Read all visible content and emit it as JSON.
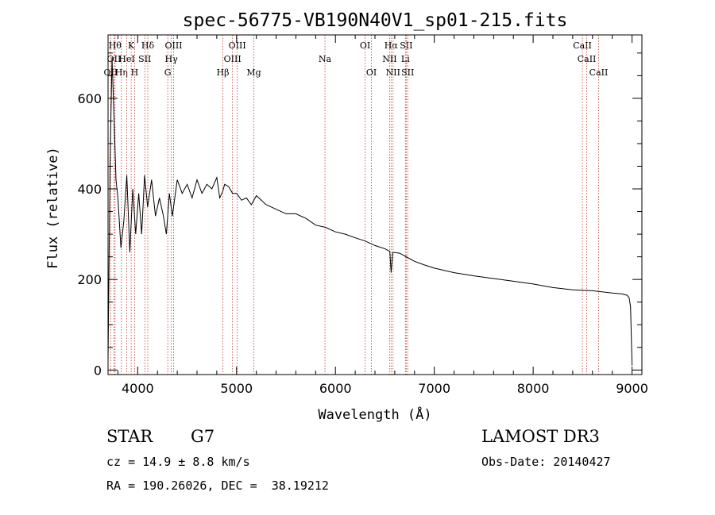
{
  "chart_data": {
    "type": "line",
    "title": "spec-56775-VB190N40V1_sp01-215.fits",
    "xlabel": "Wavelength (Å)",
    "ylabel": "Flux (relative)",
    "xlim": [
      3700,
      9100
    ],
    "ylim": [
      -10,
      740
    ],
    "xticks": [
      4000,
      5000,
      6000,
      7000,
      8000,
      9000
    ],
    "yticks": [
      0,
      200,
      400,
      600
    ],
    "xtick_labels": [
      "4000",
      "5000",
      "6000",
      "7000",
      "8000",
      "9000"
    ],
    "ytick_labels": [
      "0",
      "200",
      "400",
      "600"
    ],
    "series": [
      {
        "name": "flux",
        "color": "#000000",
        "x": [
          3700,
          3720,
          3740,
          3760,
          3780,
          3800,
          3830,
          3860,
          3890,
          3920,
          3950,
          3980,
          4010,
          4040,
          4070,
          4100,
          4140,
          4180,
          4220,
          4260,
          4290,
          4320,
          4350,
          4400,
          4450,
          4500,
          4550,
          4600,
          4650,
          4700,
          4750,
          4800,
          4830,
          4860,
          4880,
          4920,
          4960,
          5000,
          5050,
          5100,
          5150,
          5200,
          5300,
          5400,
          5500,
          5600,
          5700,
          5800,
          5900,
          6000,
          6100,
          6200,
          6300,
          6400,
          6500,
          6550,
          6563,
          6580,
          6650,
          6700,
          6800,
          6900,
          7000,
          7200,
          7400,
          7600,
          7800,
          8000,
          8200,
          8400,
          8600,
          8800,
          8900,
          8950,
          8970,
          8985,
          9000
        ],
        "values": [
          20,
          450,
          690,
          560,
          420,
          380,
          270,
          330,
          430,
          260,
          400,
          300,
          390,
          300,
          430,
          360,
          420,
          340,
          380,
          340,
          300,
          390,
          340,
          420,
          390,
          410,
          380,
          420,
          390,
          410,
          400,
          425,
          380,
          395,
          410,
          405,
          390,
          390,
          375,
          380,
          365,
          385,
          365,
          355,
          345,
          345,
          335,
          320,
          315,
          305,
          300,
          292,
          285,
          275,
          268,
          262,
          215,
          260,
          258,
          252,
          240,
          232,
          225,
          215,
          208,
          202,
          196,
          190,
          182,
          177,
          175,
          170,
          168,
          165,
          160,
          140,
          10
        ]
      }
    ],
    "spectral_lines": [
      {
        "name": "OII",
        "wavelength": 3727,
        "row": 2
      },
      {
        "name": "Hθ",
        "wavelength": 3771,
        "row": 0
      },
      {
        "name": "OII",
        "wavelength": 3760,
        "row": 1
      },
      {
        "name": "Hη",
        "wavelength": 3835,
        "row": 2
      },
      {
        "name": "HeI",
        "wavelength": 3889,
        "row": 1
      },
      {
        "name": "K",
        "wavelength": 3934,
        "row": 0
      },
      {
        "name": "H",
        "wavelength": 3969,
        "row": 2
      },
      {
        "name": "SII",
        "wavelength": 4072,
        "row": 1
      },
      {
        "name": "Hδ",
        "wavelength": 4102,
        "row": 0
      },
      {
        "name": "G",
        "wavelength": 4304,
        "row": 2
      },
      {
        "name": "Hγ",
        "wavelength": 4340,
        "row": 1
      },
      {
        "name": "OIII",
        "wavelength": 4363,
        "row": 0
      },
      {
        "name": "Hβ",
        "wavelength": 4861,
        "row": 2
      },
      {
        "name": "OIII",
        "wavelength": 4959,
        "row": 1
      },
      {
        "name": "OIII",
        "wavelength": 5007,
        "row": 0
      },
      {
        "name": "Mg",
        "wavelength": 5175,
        "row": 2
      },
      {
        "name": "Na",
        "wavelength": 5894,
        "row": 1
      },
      {
        "name": "OI",
        "wavelength": 6300,
        "row": 0
      },
      {
        "name": "OI",
        "wavelength": 6364,
        "row": 2
      },
      {
        "name": "NII",
        "wavelength": 6548,
        "row": 1
      },
      {
        "name": "Hα",
        "wavelength": 6563,
        "row": 0
      },
      {
        "name": "NII",
        "wavelength": 6583,
        "row": 2
      },
      {
        "name": "Li",
        "wavelength": 6708,
        "row": 1
      },
      {
        "name": "SII",
        "wavelength": 6716,
        "row": 0
      },
      {
        "name": "SII",
        "wavelength": 6731,
        "row": 2
      },
      {
        "name": "CaII",
        "wavelength": 8498,
        "row": 0
      },
      {
        "name": "CaII",
        "wavelength": 8542,
        "row": 1
      },
      {
        "name": "CaII",
        "wavelength": 8662,
        "row": 2
      }
    ],
    "line_marker_color": "#c0392b"
  },
  "info": {
    "object_class": "STAR",
    "subclass": "G7",
    "survey": "LAMOST DR3",
    "cz": "cz = 14.9 ± 8.8 km/s",
    "obs_date": "Obs-Date: 20140427",
    "coords": "RA = 190.26026, DEC =  38.19212"
  }
}
